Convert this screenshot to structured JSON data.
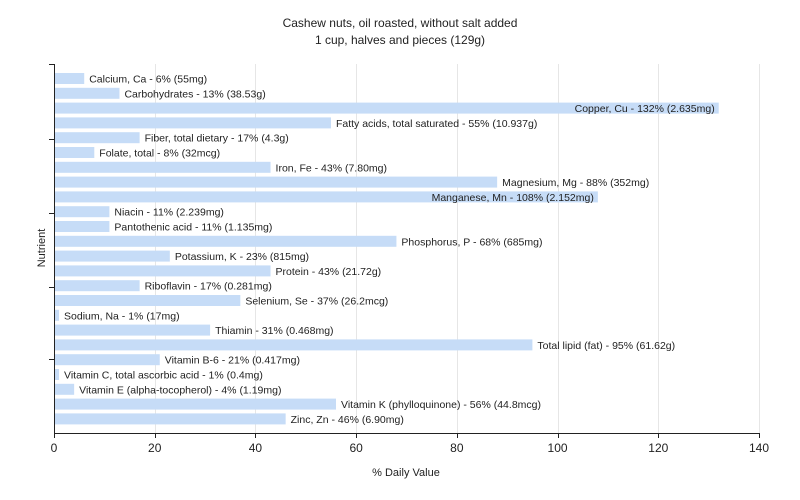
{
  "chart_data": {
    "type": "bar",
    "orientation": "horizontal",
    "title": "Cashew nuts, oil roasted, without salt added",
    "subtitle": "1 cup, halves and pieces (129g)",
    "xlabel": "% Daily Value",
    "ylabel": "Nutrient",
    "xlim": [
      0,
      140
    ],
    "xticks": [
      0,
      20,
      40,
      60,
      80,
      100,
      120,
      140
    ],
    "grid": true,
    "bar_color": "#c6dcf7",
    "categories": [
      "Calcium, Ca",
      "Carbohydrates",
      "Copper, Cu",
      "Fatty acids, total saturated",
      "Fiber, total dietary",
      "Folate, total",
      "Iron, Fe",
      "Magnesium, Mg",
      "Manganese, Mn",
      "Niacin",
      "Pantothenic acid",
      "Phosphorus, P",
      "Potassium, K",
      "Protein",
      "Riboflavin",
      "Selenium, Se",
      "Sodium, Na",
      "Thiamin",
      "Total lipid (fat)",
      "Vitamin B-6",
      "Vitamin C, total ascorbic acid",
      "Vitamin E (alpha-tocopherol)",
      "Vitamin K (phylloquinone)",
      "Zinc, Zn"
    ],
    "values": [
      6,
      13,
      132,
      55,
      17,
      8,
      43,
      88,
      108,
      11,
      11,
      68,
      23,
      43,
      17,
      37,
      1,
      31,
      95,
      21,
      1,
      4,
      56,
      46
    ],
    "labels": [
      "Calcium, Ca - 6% (55mg)",
      "Carbohydrates - 13% (38.53g)",
      "Copper, Cu - 132% (2.635mg)",
      "Fatty acids, total saturated - 55% (10.937g)",
      "Fiber, total dietary - 17% (4.3g)",
      "Folate, total - 8% (32mcg)",
      "Iron, Fe - 43% (7.80mg)",
      "Magnesium, Mg - 88% (352mg)",
      "Manganese, Mn - 108% (2.152mg)",
      "Niacin - 11% (2.239mg)",
      "Pantothenic acid - 11% (1.135mg)",
      "Phosphorus, P - 68% (685mg)",
      "Potassium, K - 23% (815mg)",
      "Protein - 43% (21.72g)",
      "Riboflavin - 17% (0.281mg)",
      "Selenium, Se - 37% (26.2mcg)",
      "Sodium, Na - 1% (17mg)",
      "Thiamin - 31% (0.468mg)",
      "Total lipid (fat) - 95% (61.62g)",
      "Vitamin B-6 - 21% (0.417mg)",
      "Vitamin C, total ascorbic acid - 1% (0.4mg)",
      "Vitamin E (alpha-tocopherol) - 4% (1.19mg)",
      "Vitamin K (phylloquinone) - 56% (44.8mcg)",
      "Zinc, Zn - 46% (6.90mg)"
    ]
  }
}
